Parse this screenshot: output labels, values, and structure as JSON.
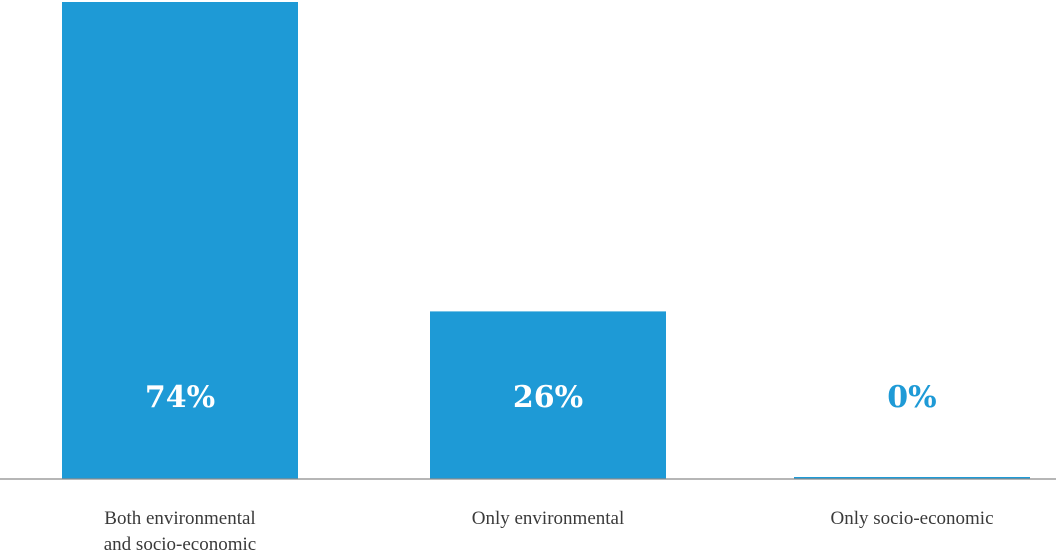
{
  "chart_data": {
    "type": "bar",
    "categories": [
      [
        "Both environmental",
        "and socio-economic"
      ],
      [
        "Only environmental"
      ],
      [
        "Only socio-economic"
      ]
    ],
    "values": [
      74,
      26,
      0
    ],
    "value_labels": [
      "74%",
      "26%",
      "0%"
    ],
    "ylim": [
      0,
      74
    ],
    "grid": false,
    "colors": {
      "bar": "#1e9ad6",
      "label_on_bar": "#ffffff",
      "label_off_bar": "#1e9ad6",
      "axis": "#8a8a8a"
    }
  }
}
